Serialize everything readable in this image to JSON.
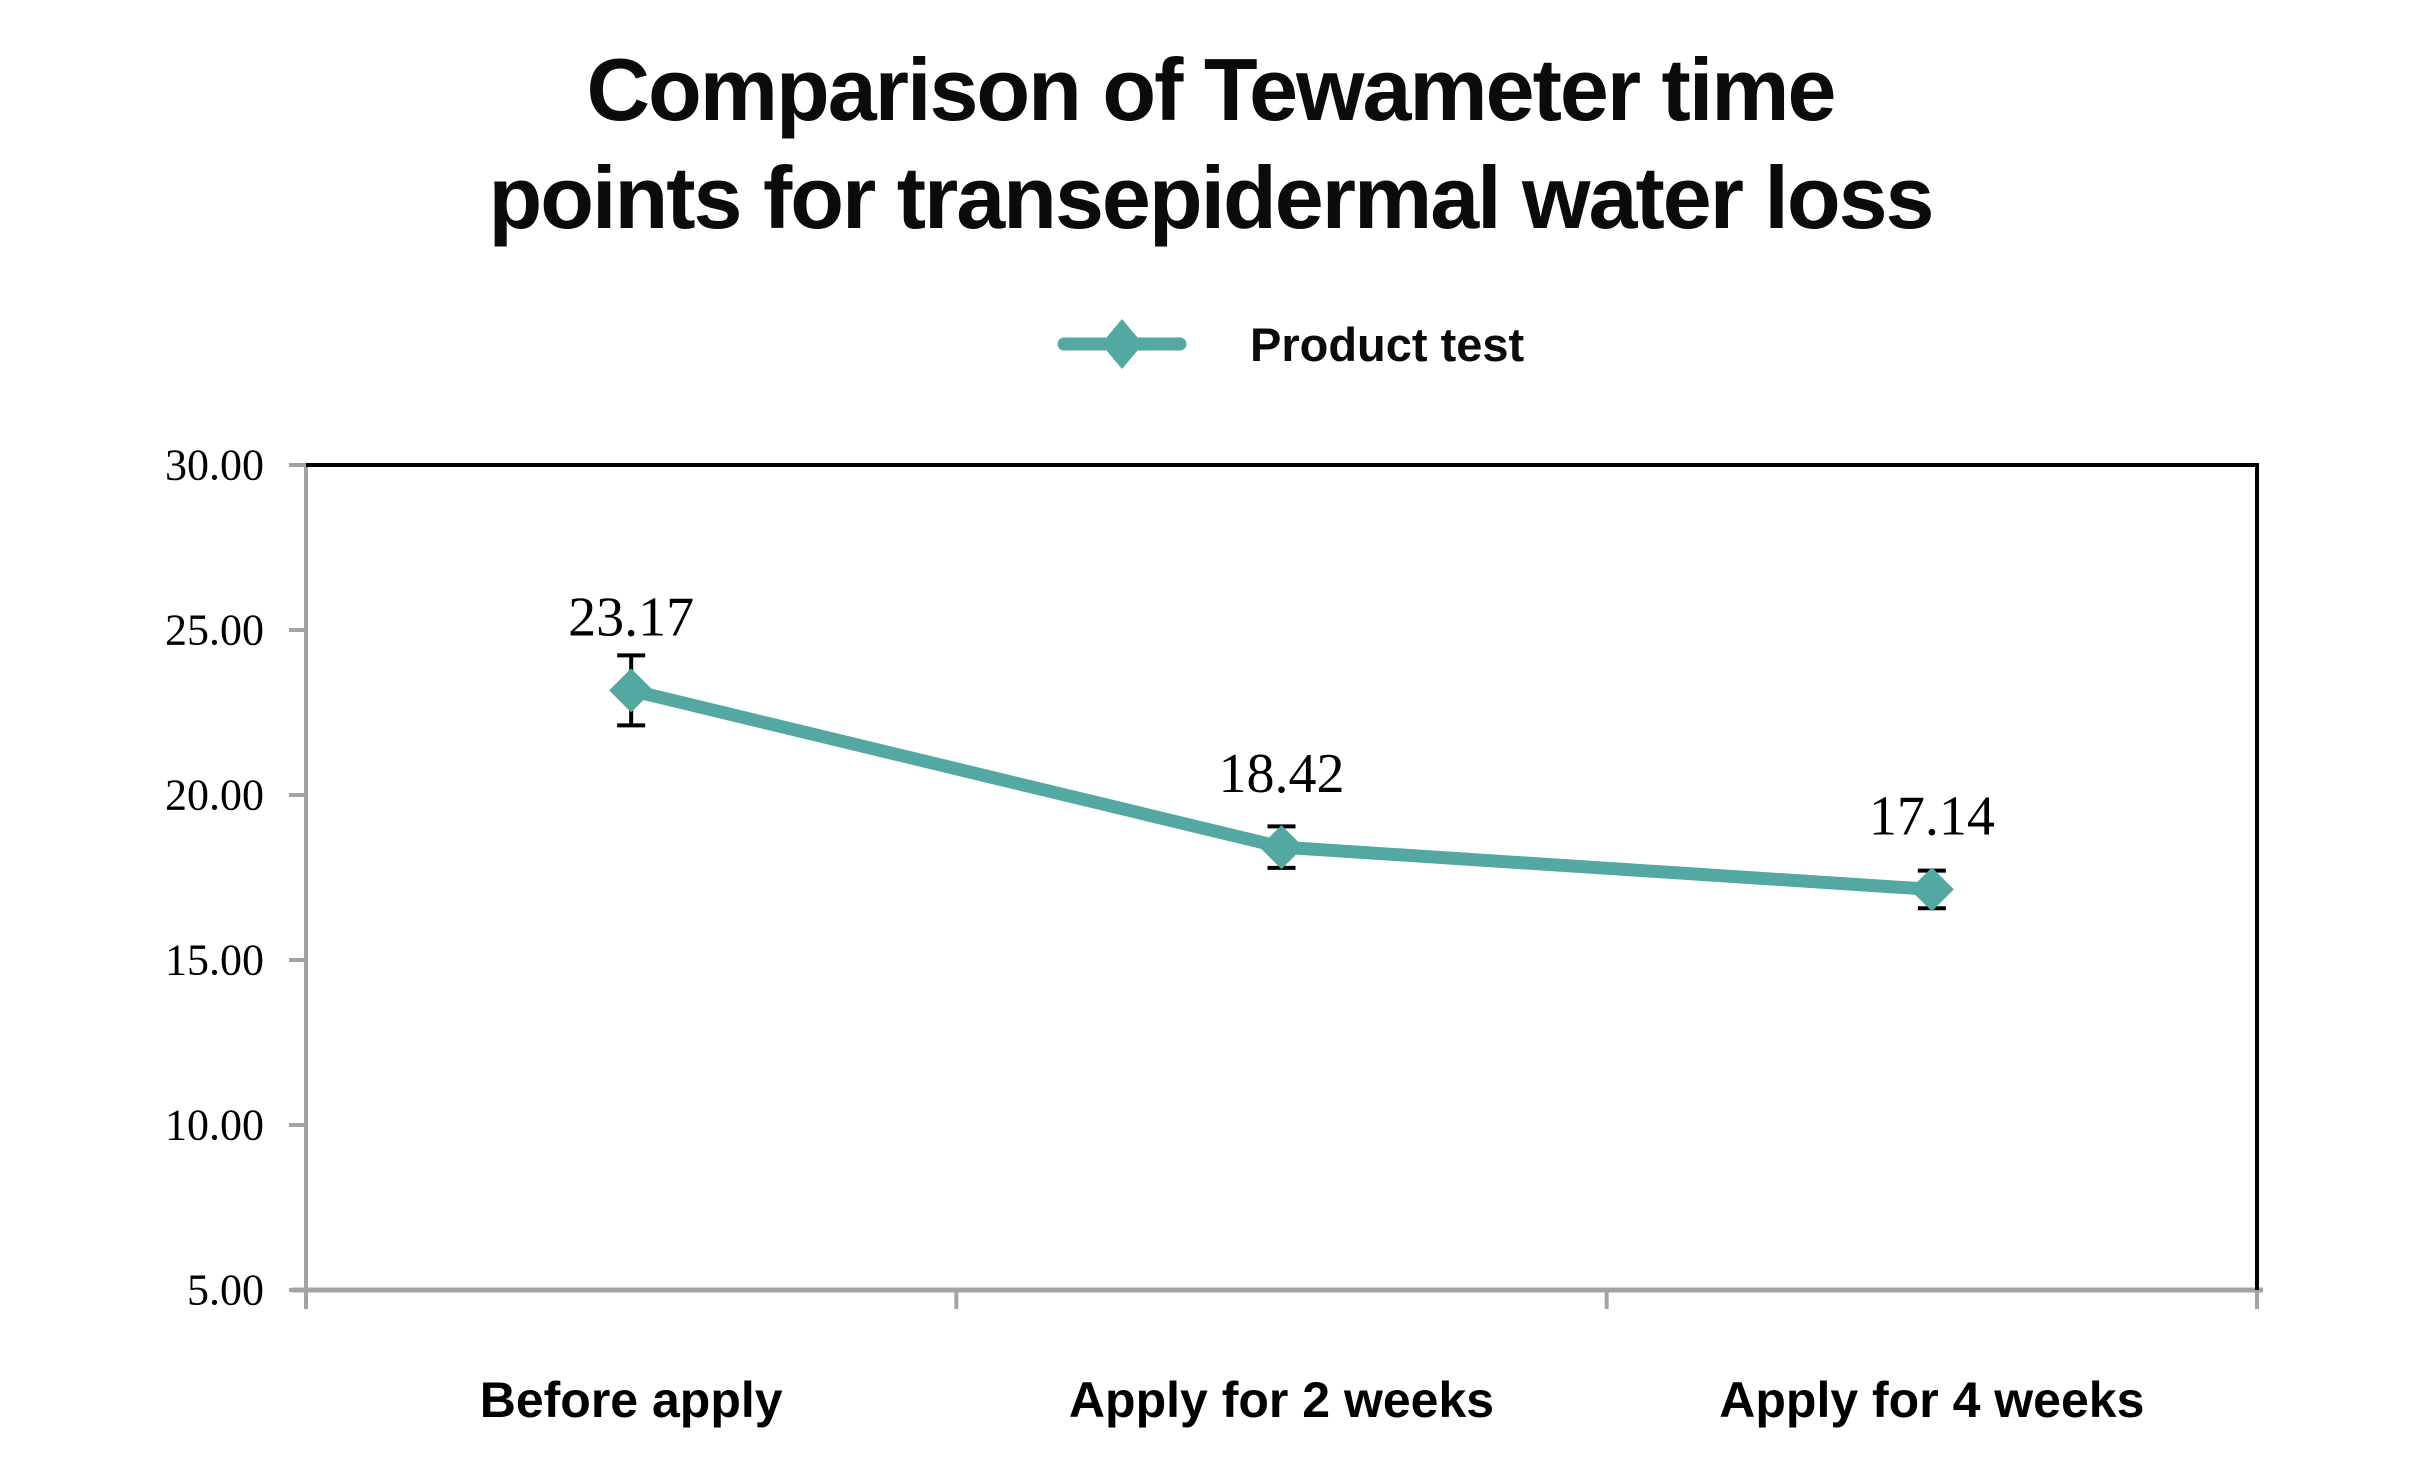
{
  "title": {
    "lines": [
      "Comparison of Tewameter time",
      "points for transepidermal water loss"
    ]
  },
  "legend": {
    "label": "Product test"
  },
  "colors": {
    "series": "#53a9a1",
    "axis": "#a3a3a3",
    "border": "#000000",
    "text": "#000000",
    "title_text": "#0b0b0b"
  },
  "chart_data": {
    "type": "line",
    "title": "Comparison of Tewameter time points for transepidermal water loss",
    "categories": [
      "Before apply",
      "Apply for 2 weeks",
      "Apply for 4 weeks"
    ],
    "series": [
      {
        "name": "Product test",
        "values": [
          23.17,
          18.42,
          17.14
        ],
        "error_bars": [
          1.06,
          0.63,
          0.57
        ]
      }
    ],
    "data_labels": [
      "23.17",
      "18.42",
      "17.14"
    ],
    "xlabel": "",
    "ylabel": "",
    "ylim": [
      5,
      30
    ],
    "yticks": [
      {
        "value": 30,
        "label": "30.00"
      },
      {
        "value": 25,
        "label": "25.00"
      },
      {
        "value": 20,
        "label": "20.00"
      },
      {
        "value": 15,
        "label": "15.00"
      },
      {
        "value": 10,
        "label": "10.00"
      },
      {
        "value": 5,
        "label": "5.00"
      }
    ],
    "grid": false,
    "legend_position": "top-center",
    "marker": "diamond"
  }
}
